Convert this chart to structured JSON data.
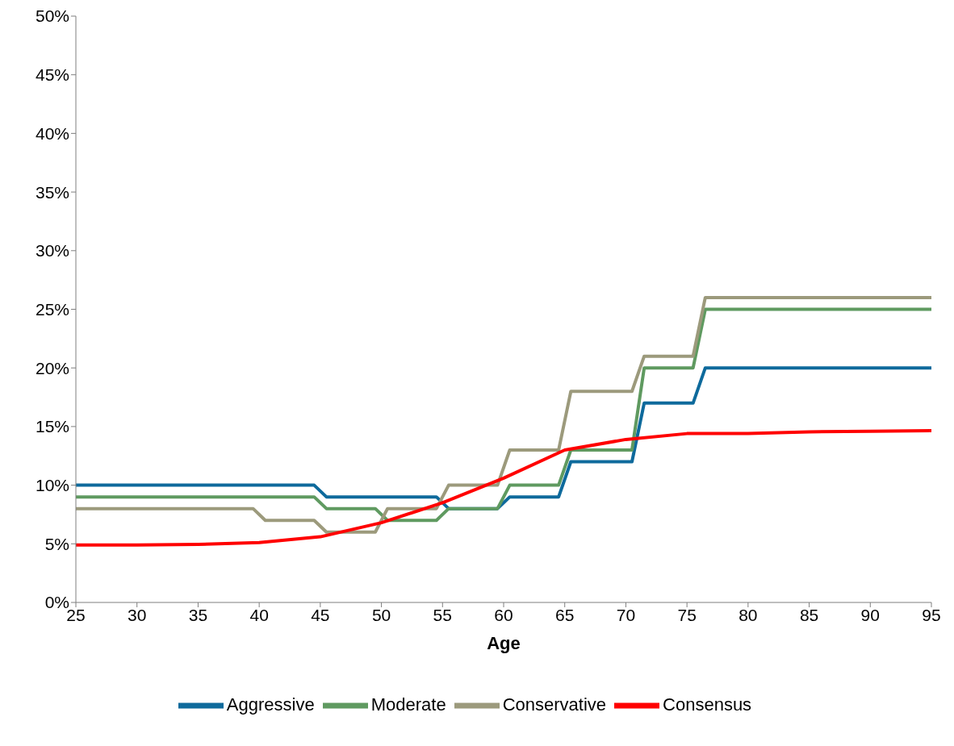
{
  "chart_data": {
    "type": "line",
    "xlabel": "Age",
    "xlim": [
      25,
      95
    ],
    "xticks": [
      25,
      30,
      35,
      40,
      45,
      50,
      55,
      60,
      65,
      70,
      75,
      80,
      85,
      90,
      95
    ],
    "ylim": [
      0,
      50
    ],
    "yticks": [
      {
        "value": 0,
        "label": "0%"
      },
      {
        "value": 5,
        "label": "5%"
      },
      {
        "value": 10,
        "label": "10%"
      },
      {
        "value": 15,
        "label": "15%"
      },
      {
        "value": 20,
        "label": "20%"
      },
      {
        "value": 25,
        "label": "25%"
      },
      {
        "value": 30,
        "label": "30%"
      },
      {
        "value": 35,
        "label": "35%"
      },
      {
        "value": 40,
        "label": "40%"
      },
      {
        "value": 45,
        "label": "45%"
      },
      {
        "value": 50,
        "label": "50%"
      }
    ],
    "grid": false,
    "legend": "bottom",
    "marker": "none",
    "line_style": "solid",
    "series": [
      {
        "name": "Aggressive",
        "color": "#0e6a9c",
        "x": [
          25,
          44.5,
          45.5,
          54.5,
          55.5,
          59.5,
          60.5,
          64.5,
          65.5,
          70.5,
          71.5,
          75.5,
          76.5,
          95
        ],
        "values": [
          10,
          10,
          9,
          9,
          8,
          8,
          9,
          9,
          12,
          12,
          17,
          17,
          20,
          20
        ]
      },
      {
        "name": "Moderate",
        "color": "#5f9a60",
        "x": [
          25,
          44.5,
          45.5,
          49.5,
          50.5,
          54.5,
          55.5,
          59.5,
          60.5,
          64.5,
          65.5,
          70.5,
          71.5,
          75.5,
          76.5,
          95
        ],
        "values": [
          9,
          9,
          8,
          8,
          7,
          7,
          8,
          8,
          10,
          10,
          13,
          13,
          20,
          20,
          25,
          25
        ]
      },
      {
        "name": "Conservative",
        "color": "#9c9a7c",
        "x": [
          25,
          39.5,
          40.5,
          44.5,
          45.5,
          49.5,
          50.5,
          54.5,
          55.5,
          59.5,
          60.5,
          64.5,
          65.5,
          70.5,
          71.5,
          75.5,
          76.5,
          95
        ],
        "values": [
          8,
          8,
          7,
          7,
          6,
          6,
          8,
          8,
          10,
          10,
          13,
          13,
          18,
          18,
          21,
          21,
          26,
          26
        ]
      },
      {
        "name": "Consensus",
        "color": "#ff0000",
        "x": [
          25,
          30,
          35,
          40,
          45,
          50,
          55,
          60,
          65,
          70,
          75,
          80,
          85,
          90,
          95
        ],
        "values": [
          4.9,
          4.9,
          4.95,
          5.1,
          5.6,
          6.8,
          8.5,
          10.6,
          13,
          13.9,
          14.4,
          14.4,
          14.55,
          14.6,
          14.65
        ]
      }
    ]
  }
}
